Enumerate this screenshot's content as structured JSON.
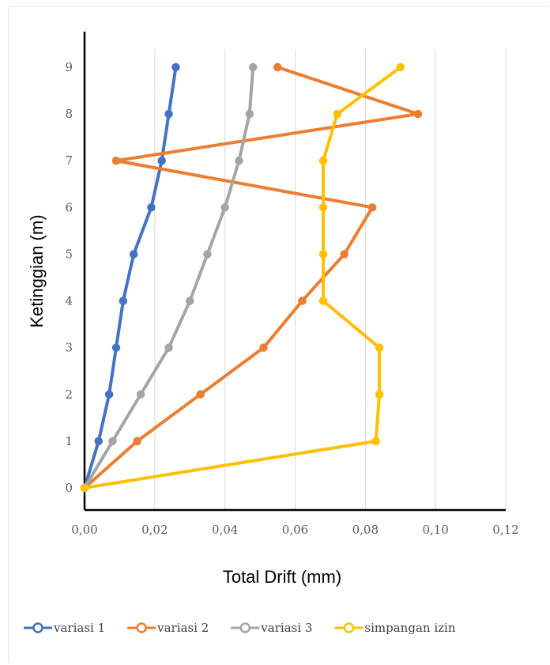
{
  "chart_data": {
    "type": "line",
    "title": "",
    "xlabel": "Total Drift (mm)",
    "ylabel": "Ketinggian (m)",
    "xlim": [
      0,
      0.12
    ],
    "ylim": [
      0,
      9
    ],
    "x_ticks": [
      "0,00",
      "0,02",
      "0,04",
      "0,06",
      "0,08",
      "0,10",
      "0,12"
    ],
    "y_ticks": [
      "0",
      "1",
      "2",
      "3",
      "4",
      "5",
      "6",
      "7",
      "8",
      "9"
    ],
    "grid": "vertical",
    "legend_position": "bottom",
    "y": [
      0,
      1,
      2,
      3,
      4,
      5,
      6,
      7,
      8,
      9
    ],
    "series": [
      {
        "name": "variasi 1",
        "color": "#4472C4",
        "x": [
          0.0,
          0.004,
          0.007,
          0.009,
          0.011,
          0.014,
          0.019,
          0.022,
          0.024,
          0.026
        ]
      },
      {
        "name": "variasi 2",
        "color": "#ED7D31",
        "x": [
          0.0,
          0.015,
          0.033,
          0.051,
          0.062,
          0.074,
          0.082,
          0.009,
          0.095,
          0.055
        ]
      },
      {
        "name": "variasi 3",
        "color": "#A5A5A5",
        "x": [
          0.0,
          0.008,
          0.016,
          0.024,
          0.03,
          0.035,
          0.04,
          0.044,
          0.047,
          0.048
        ]
      },
      {
        "name": "simpangan izin",
        "color": "#FFC000",
        "x": [
          0.0,
          0.083,
          0.084,
          0.084,
          0.068,
          0.068,
          0.068,
          0.068,
          0.072,
          0.09
        ]
      }
    ]
  }
}
